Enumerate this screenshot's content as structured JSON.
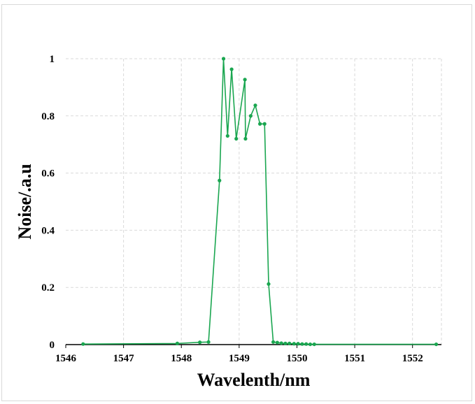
{
  "chart_data": {
    "type": "line",
    "title": "",
    "xlabel": "Wavelenth/nm",
    "ylabel": "Noise/.a.u",
    "xlim": [
      1546,
      1552.5
    ],
    "ylim": [
      0,
      1
    ],
    "xticks": [
      "1546",
      "1547",
      "1548",
      "1549",
      "1550",
      "1551",
      "1552"
    ],
    "yticks": [
      "0",
      "0.2",
      "0.4",
      "0.6",
      "0.8",
      "1"
    ],
    "grid": true,
    "color": "#1aa650",
    "series": [
      {
        "x": [
          1546.3,
          1547.93,
          1548.32,
          1548.47,
          1548.66,
          1548.73,
          1548.8,
          1548.87,
          1548.95,
          1549.1,
          1549.11,
          1549.2,
          1549.28,
          1549.36,
          1549.44,
          1549.51,
          1549.59,
          1549.66,
          1549.73,
          1549.8,
          1549.87,
          1549.95,
          1550.02,
          1550.09,
          1550.16,
          1550.23,
          1550.3,
          1552.41
        ],
        "y": [
          0.002,
          0.004,
          0.008,
          0.009,
          0.574,
          1.0,
          0.73,
          0.963,
          0.72,
          0.927,
          0.72,
          0.8,
          0.837,
          0.772,
          0.772,
          0.212,
          0.009,
          0.007,
          0.005,
          0.004,
          0.004,
          0.003,
          0.003,
          0.002,
          0.002,
          0.001,
          0.001,
          0.001
        ]
      }
    ]
  }
}
